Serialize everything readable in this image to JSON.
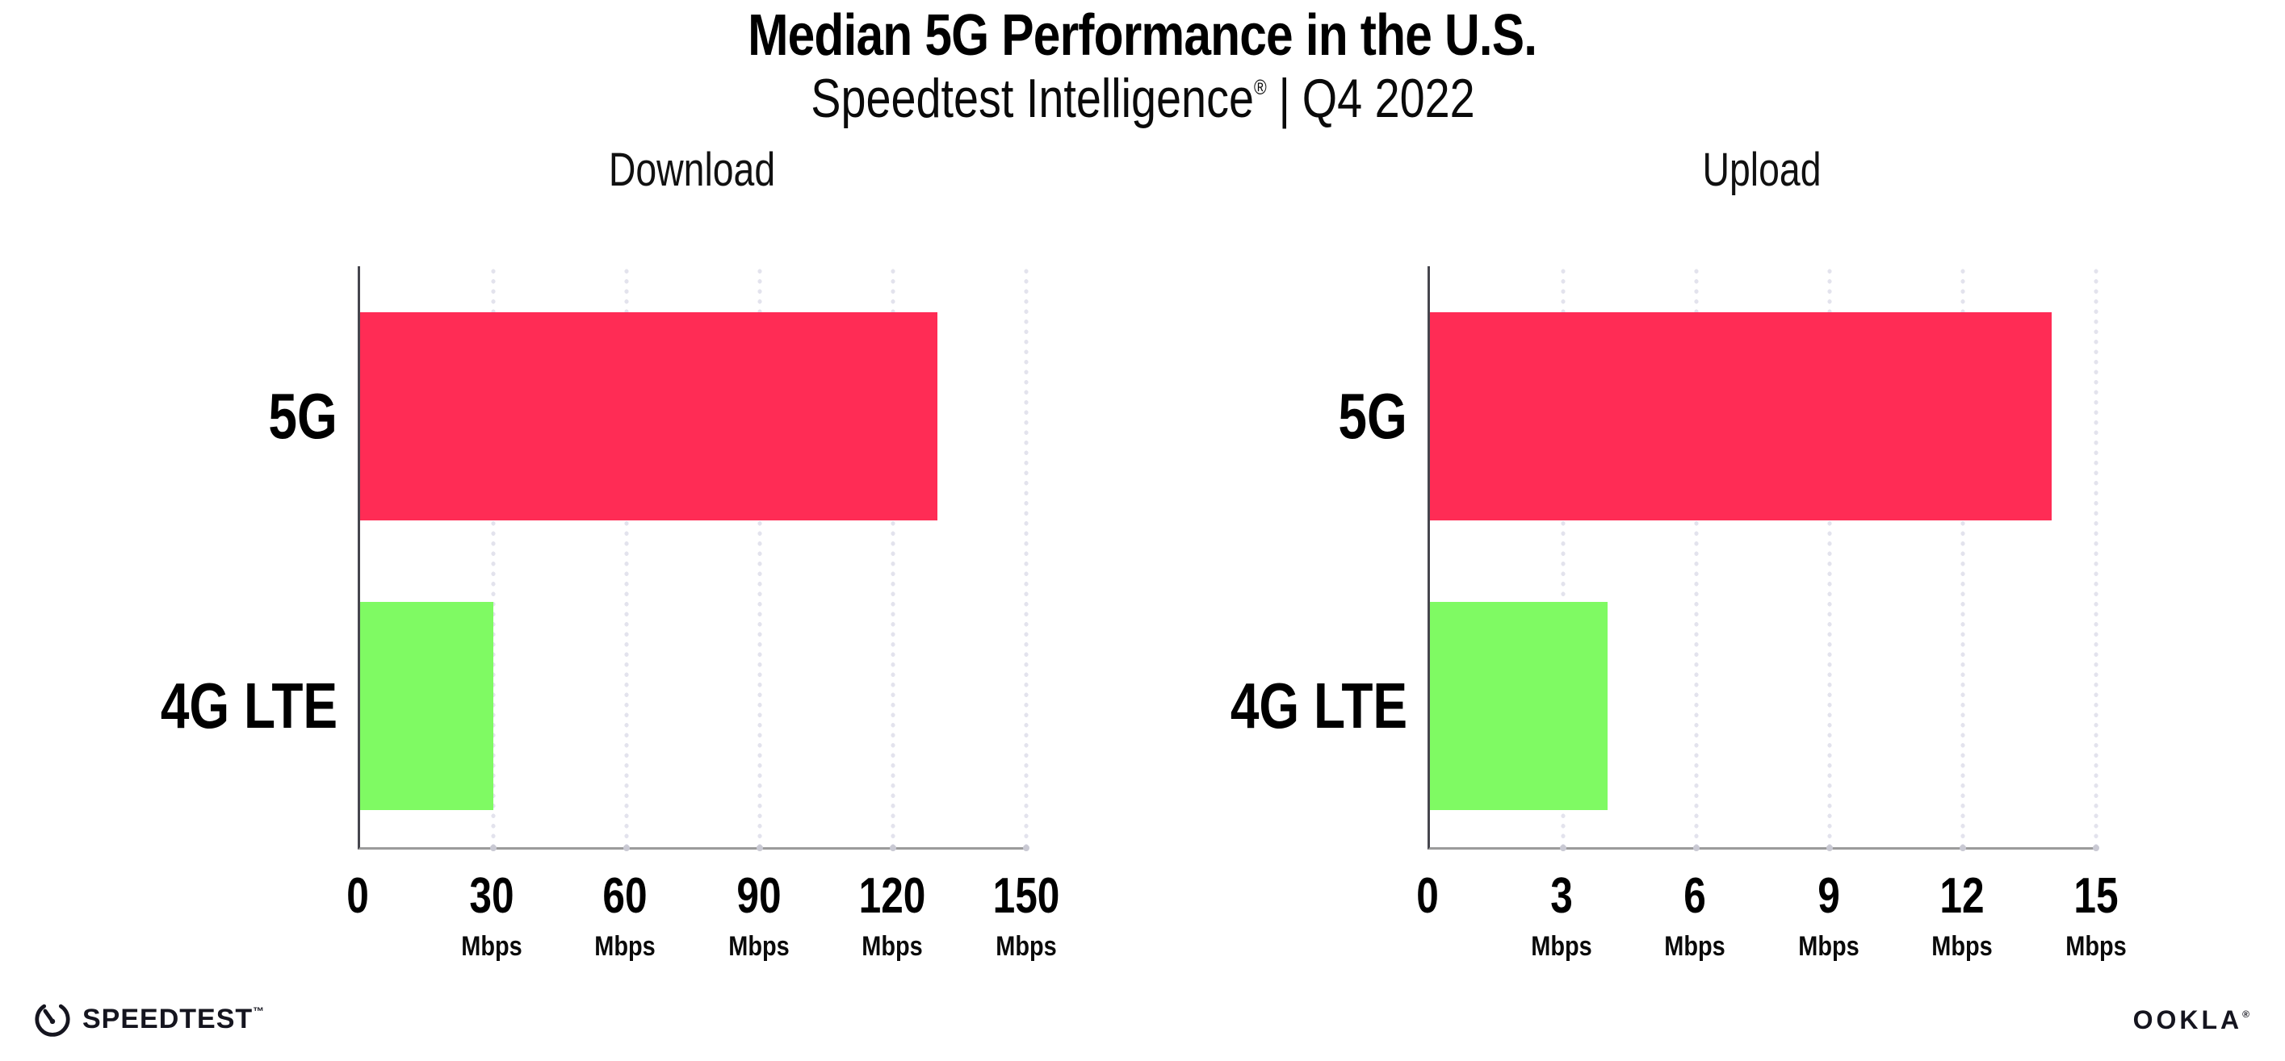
{
  "header": {
    "title": "Median 5G Performance in the U.S.",
    "subtitle": {
      "product": "Speedtest Intelligence",
      "reg_mark": "®",
      "separator": "|",
      "period": "Q4 2022"
    }
  },
  "colors": {
    "bar_5g": "#FF2C55",
    "bar_4g_lte": "#7FFA63",
    "grid_dot": "#e3e3ed",
    "x_axis_line": "#9b9b9b",
    "y_axis_line": "#46464e"
  },
  "chart_data": [
    {
      "type": "bar",
      "orientation": "horizontal",
      "title": "Download",
      "categories": [
        "5G",
        "4G LTE"
      ],
      "values": [
        130,
        30
      ],
      "unit": "Mbps",
      "xlim": [
        0,
        150
      ],
      "xticks": [
        0,
        30,
        60,
        90,
        120,
        150
      ],
      "grid": "vertical-dotted",
      "legend": "none",
      "bar_colors": [
        "#FF2C55",
        "#7FFA63"
      ]
    },
    {
      "type": "bar",
      "orientation": "horizontal",
      "title": "Upload",
      "categories": [
        "5G",
        "4G LTE"
      ],
      "values": [
        14,
        4
      ],
      "unit": "Mbps",
      "xlim": [
        0,
        15
      ],
      "xticks": [
        0,
        3,
        6,
        9,
        12,
        15
      ],
      "grid": "vertical-dotted",
      "legend": "none",
      "bar_colors": [
        "#FF2C55",
        "#7FFA63"
      ]
    }
  ],
  "footer": {
    "speedtest": {
      "label": "SPEEDTEST",
      "tm": "™"
    },
    "ookla": {
      "label": "OOKLA",
      "reg": "®"
    }
  }
}
